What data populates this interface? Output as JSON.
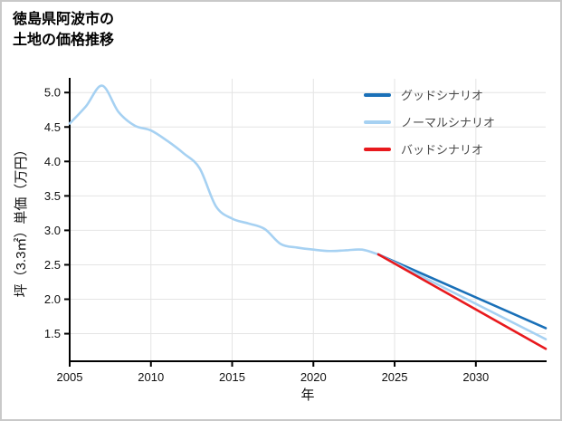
{
  "page": {
    "title": "徳島県阿波市の\n土地の価格推移"
  },
  "chart_data": {
    "type": "line",
    "title": "徳島県阿波市の土地の価格推移",
    "xlabel": "年",
    "ylabel": "坪（3.3㎡）単価（万円）",
    "xlim": [
      2005,
      2034.3
    ],
    "ylim": [
      1.1,
      5.2
    ],
    "grid": true,
    "legend_position": "top-right",
    "colors": {
      "grid": "#e4e4e4",
      "axis": "#000000",
      "good": "#1a70b8",
      "normal": "#a6d1f2",
      "bad": "#e8191d"
    },
    "xticks": {
      "values": [
        2005,
        2010,
        2015,
        2020,
        2025,
        2030
      ],
      "labels": [
        "2005",
        "2010",
        "2015",
        "2020",
        "2025",
        "2030"
      ]
    },
    "yticks": {
      "values": [
        1.5,
        2.0,
        2.5,
        3.0,
        3.5,
        4.0,
        4.5,
        5.0
      ],
      "labels": [
        "1.5",
        "2.0",
        "2.5",
        "3.0",
        "3.5",
        "4.0",
        "4.5",
        "5.0"
      ]
    },
    "legend": [
      {
        "id": "good",
        "label": "グッドシナリオ",
        "color": "#1a70b8"
      },
      {
        "id": "normal",
        "label": "ノーマルシナリオ",
        "color": "#a6d1f2"
      },
      {
        "id": "bad",
        "label": "バッドシナリオ",
        "color": "#e8191d"
      }
    ],
    "series": [
      {
        "id": "history",
        "color": "#a6d1f2",
        "width": 2.6,
        "x": [
          2005,
          2006,
          2007,
          2008,
          2009,
          2010,
          2011,
          2012,
          2013,
          2014,
          2015,
          2016,
          2017,
          2018,
          2019,
          2020,
          2021,
          2022,
          2023,
          2024
        ],
        "values": [
          4.55,
          4.8,
          5.1,
          4.72,
          4.52,
          4.45,
          4.3,
          4.12,
          3.9,
          3.35,
          3.17,
          3.1,
          3.02,
          2.8,
          2.75,
          2.72,
          2.7,
          2.71,
          2.72,
          2.65
        ]
      },
      {
        "id": "good",
        "color": "#1a70b8",
        "width": 2.6,
        "x": [
          2024,
          2034.3
        ],
        "values": [
          2.65,
          1.58
        ]
      },
      {
        "id": "normal",
        "color": "#a6d1f2",
        "width": 2.6,
        "x": [
          2024,
          2034.3
        ],
        "values": [
          2.65,
          1.42
        ]
      },
      {
        "id": "bad",
        "color": "#e8191d",
        "width": 2.6,
        "x": [
          2024,
          2034.3
        ],
        "values": [
          2.65,
          1.28
        ]
      }
    ]
  }
}
